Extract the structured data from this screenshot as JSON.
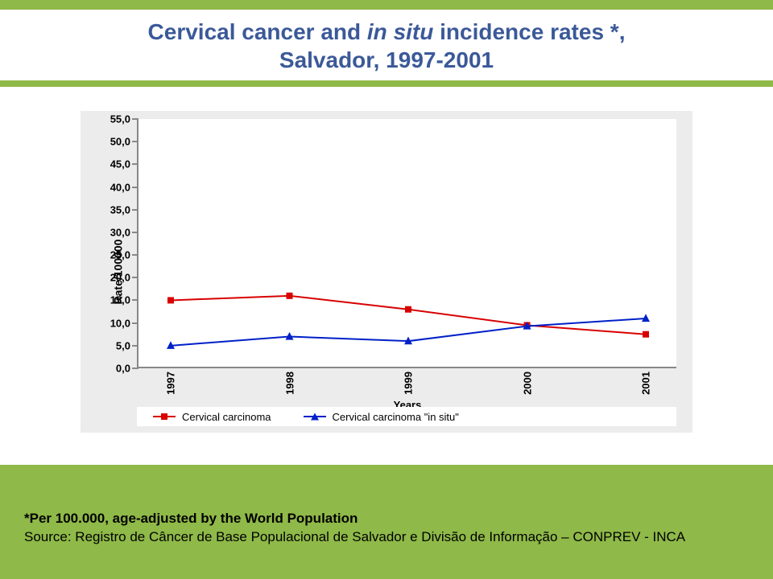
{
  "title_line1_a": "Cervical cancer and ",
  "title_line1_b": "in situ",
  "title_line1_c": " incidence rates *,",
  "title_line2": "Salvador, 1997-2001",
  "ylabel": "Rate/100000",
  "xlabel": "Years",
  "chart": {
    "type": "line",
    "background_color": "#ffffff",
    "panel_color": "#ececec",
    "axis_color": "#888888",
    "ylim": [
      0,
      55
    ],
    "ytick_step": 5,
    "yticks": [
      "0,0",
      "5,0",
      "10,0",
      "15,0",
      "20,0",
      "25,0",
      "30,0",
      "35,0",
      "40,0",
      "45,0",
      "50,0",
      "55,0"
    ],
    "categories": [
      "1997",
      "1998",
      "1999",
      "2000",
      "2001"
    ],
    "series": [
      {
        "name": "Cervical carcinoma",
        "color": "#d80000",
        "marker": "square",
        "marker_size": 8,
        "line_width": 2,
        "values": [
          15.0,
          16.0,
          13.0,
          9.5,
          7.5
        ]
      },
      {
        "name": "Cervical  carcinoma \"in situ\"",
        "color": "#0020c8",
        "marker": "triangle",
        "marker_size": 9,
        "line_width": 2,
        "values": [
          5.0,
          7.0,
          6.0,
          9.3,
          11.0
        ]
      }
    ]
  },
  "footnote_bold": "*Per 100.000, age-adjusted by the World Population",
  "footnote_src": "Source: Registro de Câncer de Base Populacional de Salvador e Divisão de Informação – CONPREV - INCA",
  "colors": {
    "page_bg": "#8fb948",
    "title_text": "#3b5998"
  }
}
